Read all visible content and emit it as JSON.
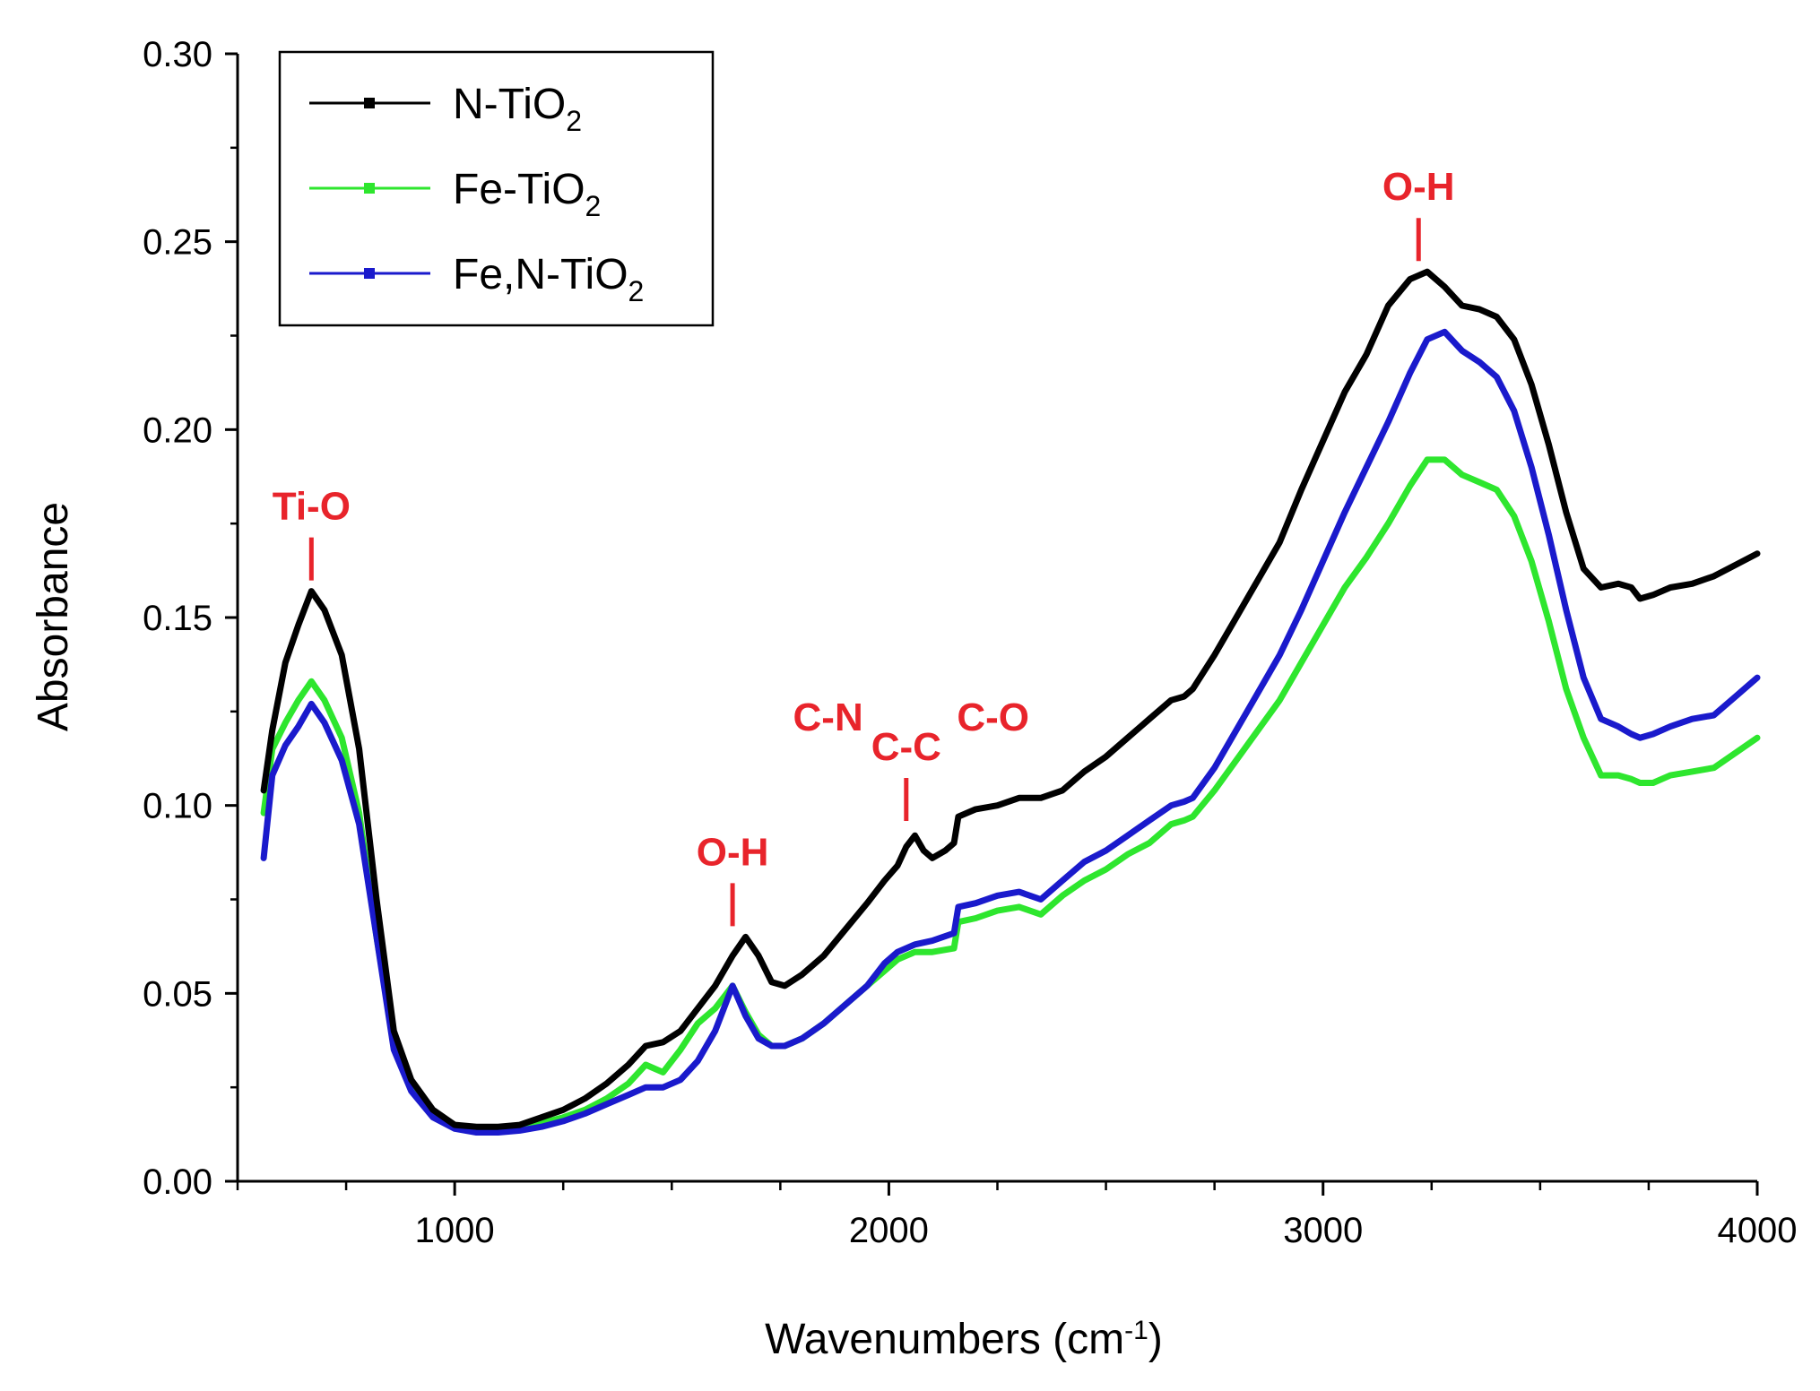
{
  "chart_data": {
    "type": "line",
    "title": "",
    "xlabel": "Wavenumbers (cm",
    "xlabel_superscript": "-1",
    "xlabel_suffix": ")",
    "ylabel": "Absorbance",
    "xlim": [
      500,
      4000
    ],
    "ylim": [
      0.0,
      0.3
    ],
    "x_ticks": [
      1000,
      2000,
      3000,
      4000
    ],
    "x_tick_labels": [
      "1000",
      "2000",
      "3000",
      "4000"
    ],
    "y_ticks": [
      0.0,
      0.05,
      0.1,
      0.15,
      0.2,
      0.25,
      0.3
    ],
    "y_tick_labels": [
      "0.00",
      "0.05",
      "0.10",
      "0.15",
      "0.20",
      "0.25",
      "0.30"
    ],
    "grid": false,
    "legend_position": "top-left",
    "series": [
      {
        "name": "N-TiO2",
        "legend_main": "N-TiO",
        "legend_sub": "2",
        "color": "#000000",
        "x": [
          560,
          580,
          610,
          640,
          670,
          700,
          740,
          780,
          820,
          860,
          900,
          950,
          1000,
          1050,
          1100,
          1150,
          1200,
          1250,
          1300,
          1350,
          1400,
          1440,
          1480,
          1520,
          1560,
          1600,
          1640,
          1670,
          1700,
          1730,
          1760,
          1800,
          1850,
          1900,
          1950,
          1990,
          2020,
          2040,
          2060,
          2080,
          2100,
          2130,
          2150,
          2160,
          2200,
          2250,
          2300,
          2350,
          2400,
          2450,
          2500,
          2550,
          2600,
          2650,
          2680,
          2700,
          2750,
          2800,
          2850,
          2900,
          2950,
          3000,
          3050,
          3100,
          3150,
          3200,
          3240,
          3280,
          3320,
          3360,
          3400,
          3440,
          3480,
          3520,
          3560,
          3600,
          3640,
          3680,
          3710,
          3730,
          3760,
          3800,
          3850,
          3900,
          3950,
          4000
        ],
        "y": [
          0.104,
          0.12,
          0.138,
          0.148,
          0.157,
          0.152,
          0.14,
          0.115,
          0.075,
          0.04,
          0.027,
          0.019,
          0.015,
          0.0145,
          0.0145,
          0.015,
          0.017,
          0.019,
          0.022,
          0.026,
          0.031,
          0.036,
          0.037,
          0.04,
          0.046,
          0.052,
          0.06,
          0.065,
          0.06,
          0.053,
          0.052,
          0.055,
          0.06,
          0.067,
          0.074,
          0.08,
          0.084,
          0.089,
          0.092,
          0.088,
          0.086,
          0.088,
          0.09,
          0.097,
          0.099,
          0.1,
          0.102,
          0.102,
          0.104,
          0.109,
          0.113,
          0.118,
          0.123,
          0.128,
          0.129,
          0.131,
          0.14,
          0.15,
          0.16,
          0.17,
          0.184,
          0.197,
          0.21,
          0.22,
          0.233,
          0.24,
          0.242,
          0.238,
          0.233,
          0.232,
          0.23,
          0.224,
          0.212,
          0.196,
          0.178,
          0.163,
          0.158,
          0.159,
          0.158,
          0.155,
          0.156,
          0.158,
          0.159,
          0.161,
          0.164,
          0.167
        ]
      },
      {
        "name": "Fe-TiO2",
        "legend_main": "Fe-TiO",
        "legend_sub": "2",
        "color": "#2ee62e",
        "x": [
          560,
          580,
          610,
          640,
          670,
          700,
          740,
          780,
          820,
          860,
          900,
          950,
          1000,
          1050,
          1100,
          1150,
          1200,
          1250,
          1300,
          1350,
          1400,
          1440,
          1480,
          1520,
          1560,
          1600,
          1640,
          1670,
          1700,
          1730,
          1760,
          1800,
          1850,
          1900,
          1950,
          1990,
          2020,
          2060,
          2100,
          2150,
          2160,
          2200,
          2250,
          2300,
          2350,
          2400,
          2450,
          2500,
          2550,
          2600,
          2650,
          2680,
          2700,
          2750,
          2800,
          2850,
          2900,
          2950,
          3000,
          3050,
          3100,
          3150,
          3200,
          3240,
          3280,
          3320,
          3360,
          3400,
          3440,
          3480,
          3520,
          3560,
          3600,
          3640,
          3680,
          3710,
          3730,
          3760,
          3800,
          3850,
          3900,
          3950,
          4000
        ],
        "y": [
          0.098,
          0.115,
          0.122,
          0.128,
          0.133,
          0.128,
          0.118,
          0.098,
          0.065,
          0.037,
          0.025,
          0.018,
          0.0145,
          0.0135,
          0.0135,
          0.014,
          0.0155,
          0.017,
          0.019,
          0.022,
          0.026,
          0.031,
          0.029,
          0.035,
          0.042,
          0.046,
          0.052,
          0.045,
          0.039,
          0.036,
          0.036,
          0.038,
          0.042,
          0.047,
          0.052,
          0.056,
          0.059,
          0.061,
          0.061,
          0.062,
          0.069,
          0.07,
          0.072,
          0.073,
          0.071,
          0.076,
          0.08,
          0.083,
          0.087,
          0.09,
          0.095,
          0.096,
          0.097,
          0.104,
          0.112,
          0.12,
          0.128,
          0.138,
          0.148,
          0.158,
          0.166,
          0.175,
          0.185,
          0.192,
          0.192,
          0.188,
          0.186,
          0.184,
          0.177,
          0.165,
          0.149,
          0.131,
          0.118,
          0.108,
          0.108,
          0.107,
          0.106,
          0.106,
          0.108,
          0.109,
          0.11,
          0.114,
          0.118
        ]
      },
      {
        "name": "Fe,N-TiO2",
        "legend_main": "Fe,N-TiO",
        "legend_sub": "2",
        "color": "#1a1acc",
        "x": [
          560,
          580,
          610,
          640,
          670,
          700,
          740,
          780,
          820,
          860,
          900,
          950,
          1000,
          1050,
          1100,
          1150,
          1200,
          1250,
          1300,
          1350,
          1400,
          1440,
          1480,
          1520,
          1560,
          1600,
          1640,
          1670,
          1700,
          1730,
          1760,
          1800,
          1850,
          1900,
          1950,
          1990,
          2020,
          2060,
          2100,
          2150,
          2160,
          2200,
          2250,
          2300,
          2350,
          2400,
          2450,
          2500,
          2550,
          2600,
          2650,
          2680,
          2700,
          2750,
          2800,
          2850,
          2900,
          2950,
          3000,
          3050,
          3100,
          3150,
          3200,
          3240,
          3280,
          3320,
          3360,
          3400,
          3440,
          3480,
          3520,
          3560,
          3600,
          3640,
          3680,
          3710,
          3730,
          3760,
          3800,
          3850,
          3900,
          3950,
          4000
        ],
        "y": [
          0.086,
          0.108,
          0.116,
          0.121,
          0.127,
          0.122,
          0.112,
          0.095,
          0.065,
          0.035,
          0.024,
          0.017,
          0.014,
          0.013,
          0.013,
          0.0135,
          0.0145,
          0.016,
          0.018,
          0.0205,
          0.023,
          0.025,
          0.025,
          0.027,
          0.032,
          0.04,
          0.052,
          0.044,
          0.038,
          0.036,
          0.036,
          0.038,
          0.042,
          0.047,
          0.052,
          0.058,
          0.061,
          0.063,
          0.064,
          0.066,
          0.073,
          0.074,
          0.076,
          0.077,
          0.075,
          0.08,
          0.085,
          0.088,
          0.092,
          0.096,
          0.1,
          0.101,
          0.102,
          0.11,
          0.12,
          0.13,
          0.14,
          0.152,
          0.165,
          0.178,
          0.19,
          0.202,
          0.215,
          0.224,
          0.226,
          0.221,
          0.218,
          0.214,
          0.205,
          0.19,
          0.172,
          0.152,
          0.134,
          0.123,
          0.121,
          0.119,
          0.118,
          0.119,
          0.121,
          0.123,
          0.124,
          0.129,
          0.134
        ]
      }
    ],
    "annotations": [
      {
        "text": "Ti-O",
        "x": 670,
        "y": 0.157
      },
      {
        "text": "O-H",
        "x": 1640,
        "y": 0.065
      },
      {
        "text": "C-N",
        "x": 1860,
        "y": 0.12
      },
      {
        "text": "C-C",
        "x": 2040,
        "y": 0.093
      },
      {
        "text": "C-O",
        "x": 2240,
        "y": 0.12
      },
      {
        "text": "O-H",
        "x": 3220,
        "y": 0.242
      }
    ],
    "annotation_color": "#e8242b"
  }
}
